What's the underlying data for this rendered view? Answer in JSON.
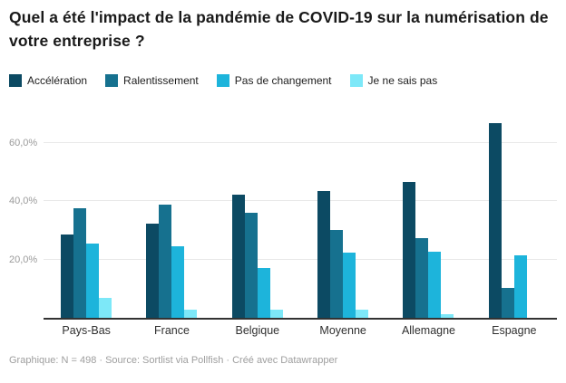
{
  "header": {
    "title": "Quel a été l'impact de la pandémie de COVID-19 sur la numérisation de votre entreprise ?"
  },
  "footer": {
    "text": "Graphique: N = 498 · Source: Sortlist via Pollfish · Créé avec Datawrapper"
  },
  "colors": {
    "accent_dark": "#0c4a63",
    "accent_teal": "#16718f",
    "accent_cyan": "#1db4db",
    "accent_light": "#7de8f8",
    "axis_line": "#333333",
    "gridline": "#e8e8e8",
    "tick_text": "#9b9b9b"
  },
  "chart_data": {
    "type": "bar",
    "title": "Quel a été l'impact de la pandémie de COVID-19 sur la numérisation de votre entreprise ?",
    "categories": [
      "Pays-Bas",
      "France",
      "Belgique",
      "Moyenne",
      "Allemagne",
      "Espagne"
    ],
    "series": [
      {
        "name": "Accélération",
        "color": "#0c4a63",
        "values": [
          28.7,
          32.4,
          42.2,
          43.5,
          46.8,
          66.8
        ]
      },
      {
        "name": "Ralentissement",
        "color": "#16718f",
        "values": [
          37.8,
          38.8,
          36.2,
          30.1,
          27.5,
          10.4
        ]
      },
      {
        "name": "Pas de changement",
        "color": "#1db4db",
        "values": [
          25.6,
          24.6,
          17.0,
          22.3,
          22.6,
          21.6
        ]
      },
      {
        "name": "Je ne sais pas",
        "color": "#7de8f8",
        "values": [
          6.7,
          2.8,
          2.8,
          2.7,
          1.4,
          0
        ]
      }
    ],
    "y_ticks": [
      {
        "label": "20,0%",
        "value": 20
      },
      {
        "label": "40,0%",
        "value": 40
      },
      {
        "label": "60,0%",
        "value": 60
      }
    ],
    "ylim": [
      0,
      70
    ],
    "ylabel": "",
    "xlabel": "",
    "grid": true,
    "legend_position": "top"
  }
}
